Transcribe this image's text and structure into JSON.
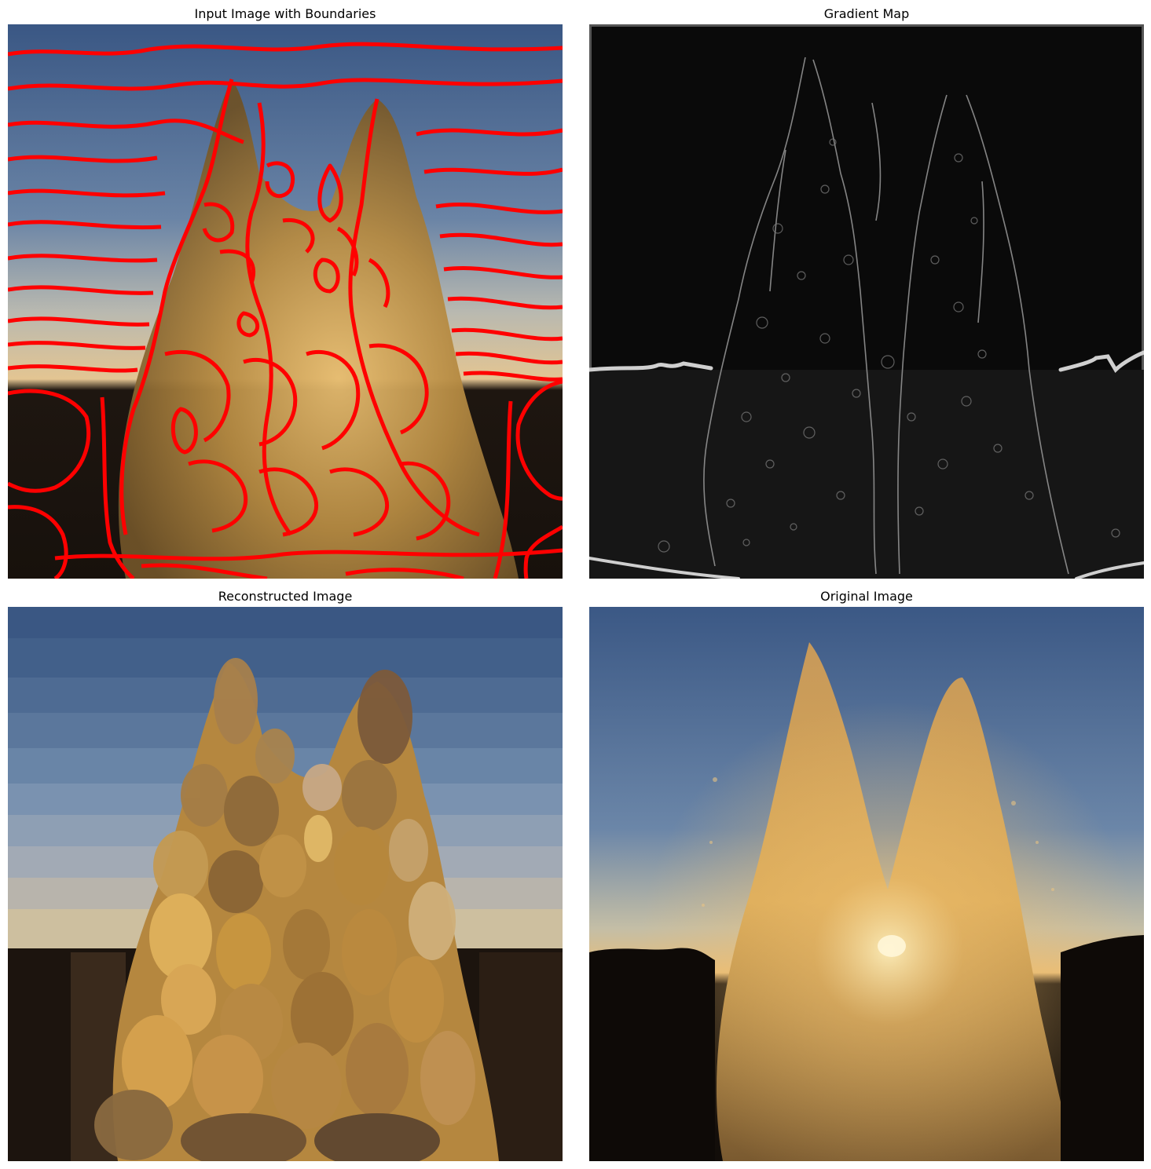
{
  "figure": {
    "panels": [
      {
        "title": "Input Image with Boundaries"
      },
      {
        "title": "Gradient Map"
      },
      {
        "title": "Reconstructed Image"
      },
      {
        "title": "Original Image"
      }
    ]
  },
  "colors": {
    "boundary": "#ff0000",
    "sky_top": "#3c5a86",
    "sky_mid": "#7f92ae",
    "sky_low": "#e3c592",
    "water_light": "#e0b060",
    "water_mid": "#b3873f",
    "water_dark": "#7a5a2e",
    "ground": "#1e1610",
    "gradient_bg": "#0a0a0a",
    "gradient_edge": "#d8d8d8"
  }
}
